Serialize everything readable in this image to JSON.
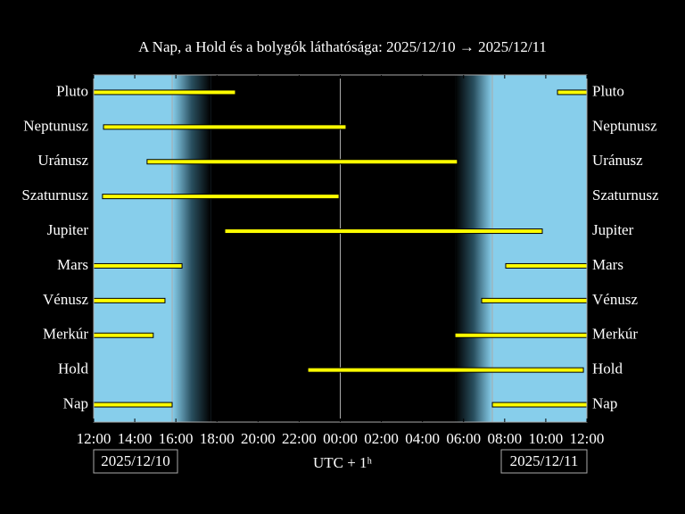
{
  "chart_data": {
    "type": "visibility",
    "title": "A Nap, a Hold és a bolygók láthatósága: 2025/12/10 → 2025/12/11",
    "xlabel": "UTC + 1ʰ",
    "start_date": "2025/12/10",
    "end_date": "2025/12/11",
    "xlim": [
      12,
      36
    ],
    "xticks": [
      {
        "value": 12,
        "label": "12:00"
      },
      {
        "value": 14,
        "label": "14:00"
      },
      {
        "value": 16,
        "label": "16:00"
      },
      {
        "value": 18,
        "label": "18:00"
      },
      {
        "value": 20,
        "label": "20:00"
      },
      {
        "value": 22,
        "label": "22:00"
      },
      {
        "value": 24,
        "label": "00:00"
      },
      {
        "value": 26,
        "label": "02:00"
      },
      {
        "value": 28,
        "label": "04:00"
      },
      {
        "value": 30,
        "label": "06:00"
      },
      {
        "value": 32,
        "label": "08:00"
      },
      {
        "value": 34,
        "label": "10:00"
      },
      {
        "value": 36,
        "label": "12:00"
      }
    ],
    "sunset": 15.82,
    "twilight_end": 17.7,
    "twilight_start": 29.6,
    "sunrise": 31.4,
    "midnight": 24,
    "day_color": "#87ceeb",
    "bar_color": "#ffff00",
    "rows": [
      {
        "name": "Pluto",
        "intervals": [
          [
            12,
            18.9
          ],
          [
            34.57,
            36
          ]
        ]
      },
      {
        "name": "Neptunusz",
        "intervals": [
          [
            12.48,
            24.28
          ]
        ]
      },
      {
        "name": "Uránusz",
        "intervals": [
          [
            14.6,
            29.7
          ]
        ]
      },
      {
        "name": "Szaturnusz",
        "intervals": [
          [
            12.43,
            23.94
          ]
        ]
      },
      {
        "name": "Jupiter",
        "intervals": [
          [
            18.38,
            33.83
          ]
        ]
      },
      {
        "name": "Mars",
        "intervals": [
          [
            12,
            16.3
          ],
          [
            32.05,
            36
          ]
        ]
      },
      {
        "name": "Vénusz",
        "intervals": [
          [
            12,
            15.47
          ],
          [
            30.88,
            36
          ]
        ]
      },
      {
        "name": "Merkúr",
        "intervals": [
          [
            12,
            14.9
          ],
          [
            29.58,
            36
          ]
        ]
      },
      {
        "name": "Hold",
        "intervals": [
          [
            22.42,
            35.83
          ]
        ]
      },
      {
        "name": "Nap",
        "intervals": [
          [
            12,
            15.82
          ],
          [
            31.4,
            36
          ]
        ]
      }
    ]
  }
}
